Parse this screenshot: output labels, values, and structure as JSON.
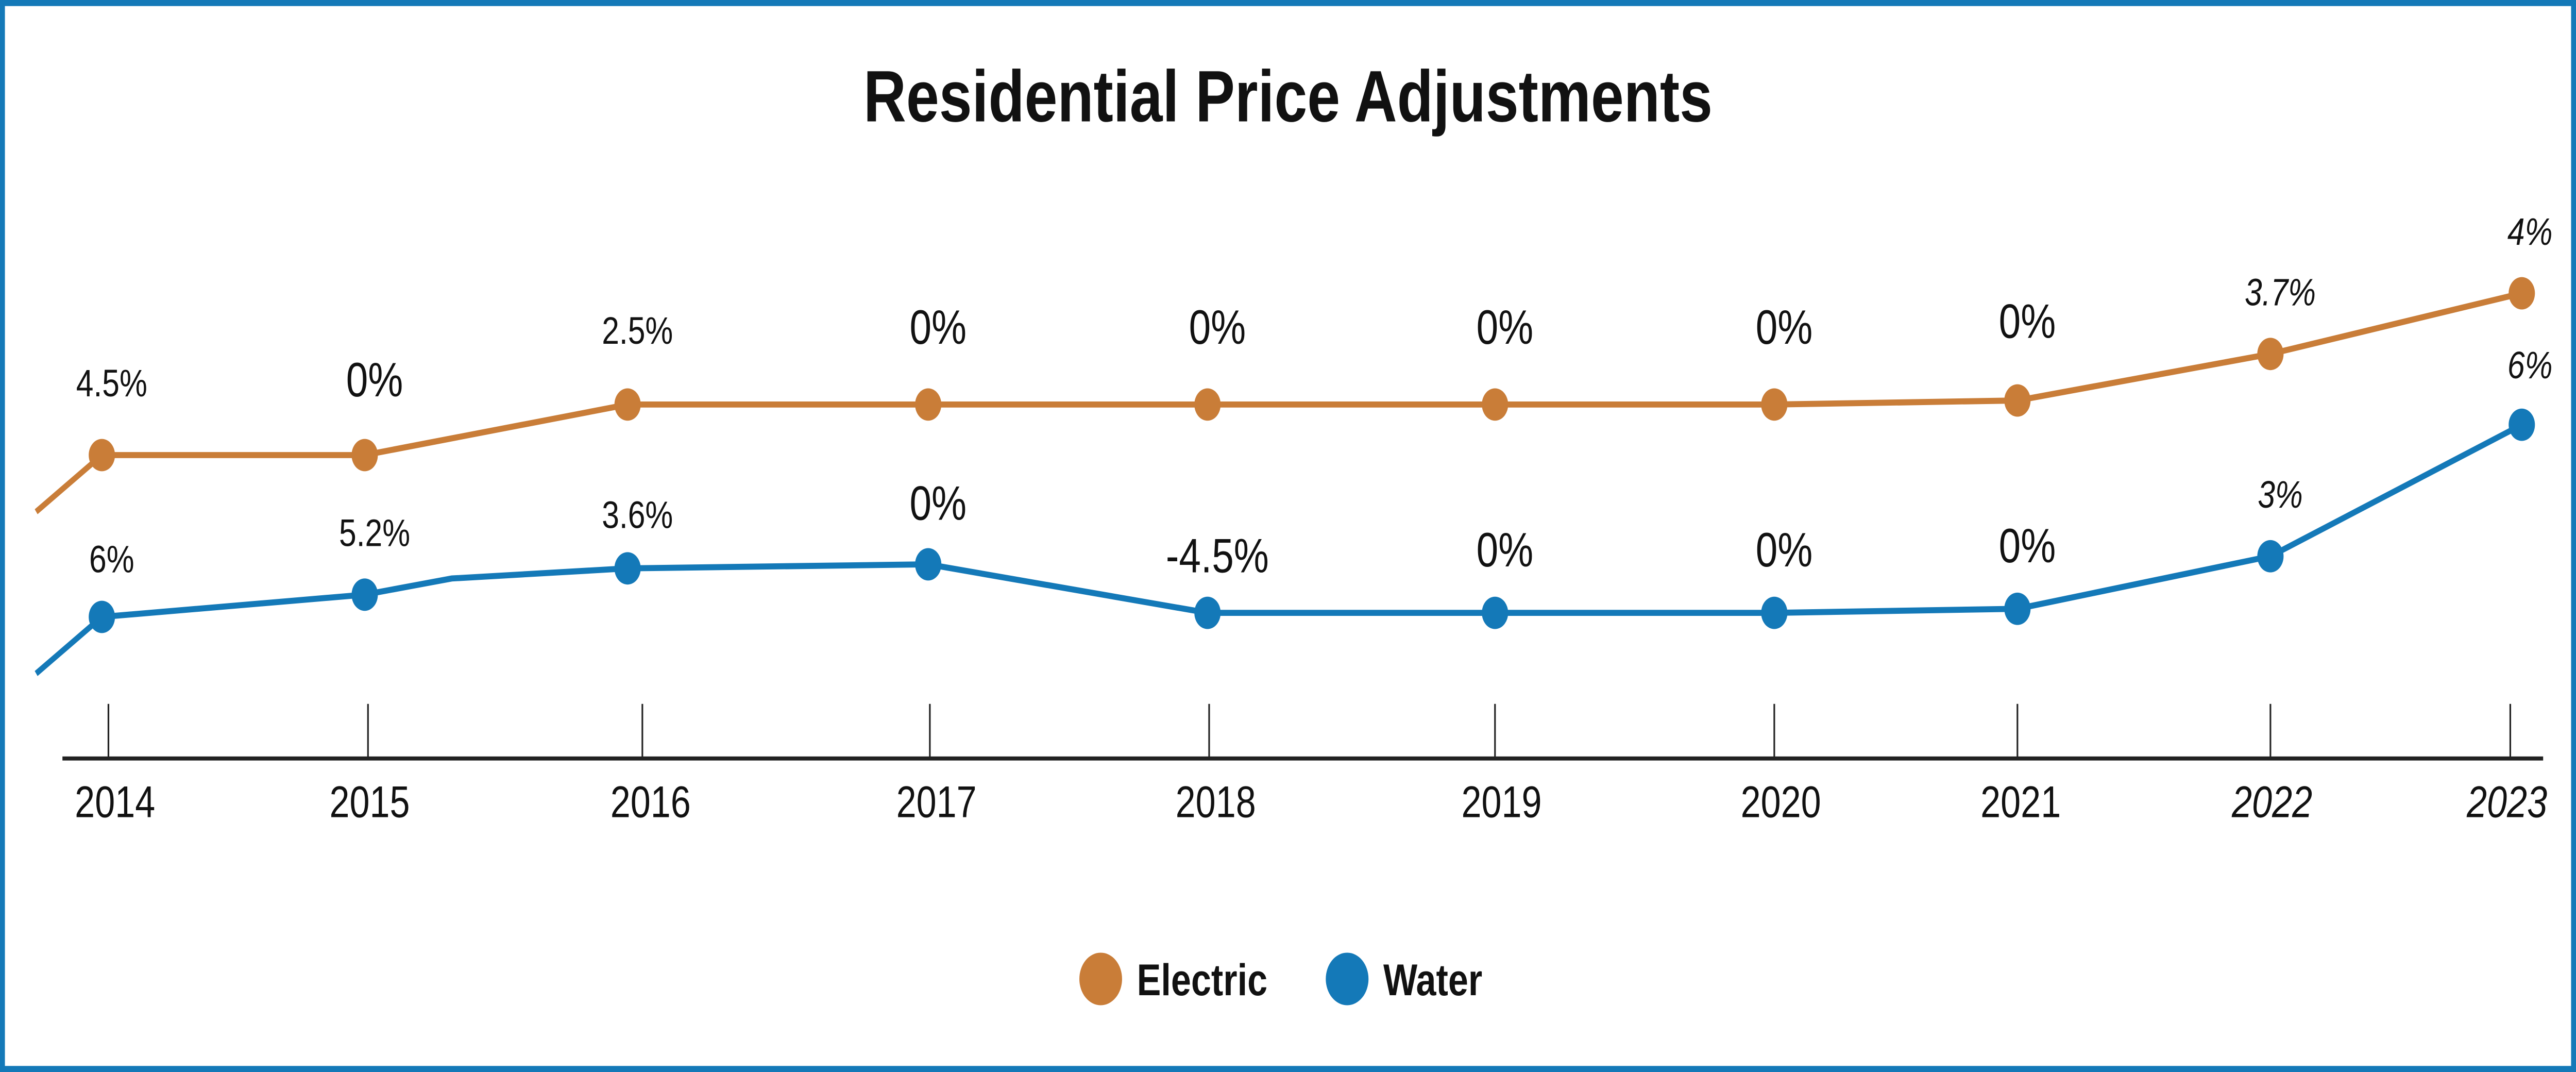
{
  "chart_data": {
    "type": "line",
    "title": "Residential Price Adjustments",
    "categories": [
      "2014",
      "2015",
      "2016",
      "2017",
      "2018",
      "2019",
      "2020",
      "2021",
      "2022",
      "2023"
    ],
    "italic_categories": [
      "2022",
      "2023"
    ],
    "series": [
      {
        "name": "Electric",
        "color": "#c97d38",
        "values": [
          4.5,
          0,
          2.5,
          0,
          0,
          0,
          0,
          0,
          3.7,
          4
        ],
        "labels": [
          "4.5%",
          "0%",
          "2.5%",
          "0%",
          "0%",
          "0%",
          "0%",
          "0%",
          "3.7%",
          "4%"
        ]
      },
      {
        "name": "Water",
        "color": "#1479b8",
        "values": [
          6,
          5.2,
          3.6,
          0,
          -4.5,
          0,
          0,
          0,
          3,
          6
        ],
        "labels": [
          "6%",
          "5.2%",
          "3.6%",
          "0%",
          "-4.5%",
          "0%",
          "0%",
          "0%",
          "3%",
          "6%"
        ]
      }
    ],
    "xlabel": "",
    "ylabel": "",
    "grid": false,
    "legend_position": "bottom",
    "border_color": "#1479b8"
  }
}
